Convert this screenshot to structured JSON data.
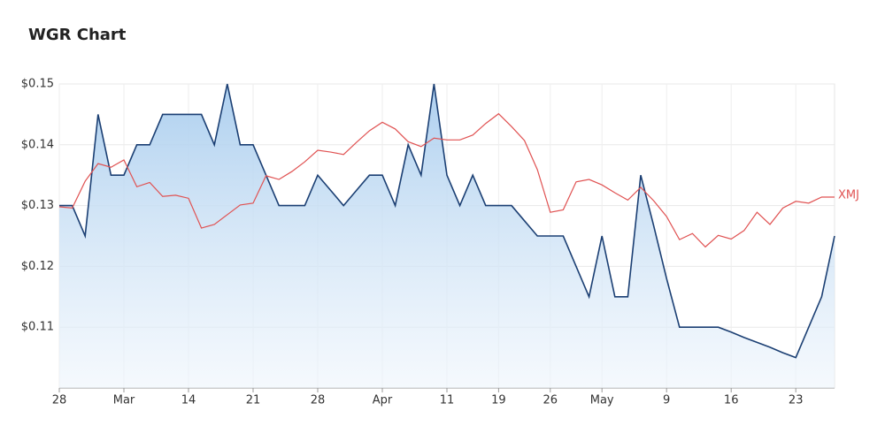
{
  "chart_data": {
    "type": "line",
    "title": "WGR Chart",
    "categories": [
      "28",
      null,
      null,
      null,
      null,
      "Mar",
      null,
      null,
      null,
      null,
      "14",
      null,
      null,
      null,
      null,
      "21",
      null,
      null,
      null,
      null,
      "28",
      null,
      null,
      null,
      null,
      "Apr",
      null,
      null,
      null,
      null,
      "11",
      null,
      null,
      null,
      "19",
      null,
      null,
      null,
      "26",
      null,
      null,
      null,
      "May",
      null,
      null,
      null,
      null,
      "9",
      null,
      null,
      null,
      null,
      "16",
      null,
      null,
      null,
      null,
      "23",
      null,
      null,
      null
    ],
    "series": [
      {
        "color": "#1b3f73",
        "fill": true,
        "values": [
          0.13,
          0.13,
          0.125,
          0.145,
          0.135,
          0.135,
          0.14,
          0.14,
          0.145,
          0.145,
          0.145,
          0.145,
          0.14,
          0.15,
          0.14,
          0.14,
          0.135,
          0.13,
          0.13,
          0.13,
          0.135,
          0.1325,
          0.13,
          0.1325,
          0.135,
          0.135,
          0.13,
          0.14,
          0.135,
          0.15,
          0.135,
          0.13,
          0.135,
          0.13,
          0.13,
          0.13,
          0.1275,
          0.125,
          0.125,
          0.125,
          0.12,
          0.115,
          0.125,
          0.115,
          0.115,
          0.135,
          0.1267,
          0.118,
          0.11,
          0.11,
          0.11,
          0.11,
          0.1092,
          0.1083,
          0.1075,
          0.1067,
          0.1058,
          0.105,
          0.11,
          0.115,
          0.125
        ]
      },
      {
        "name": "XMJ",
        "color": "#e05252",
        "fill": false,
        "values": [
          0.1298,
          0.1296,
          0.134,
          0.1369,
          0.1363,
          0.1375,
          0.1331,
          0.1338,
          0.1315,
          0.1317,
          0.1312,
          0.1263,
          0.1269,
          0.1285,
          0.1301,
          0.1304,
          0.1349,
          0.1343,
          0.1356,
          0.1372,
          0.1391,
          0.1388,
          0.1384,
          0.1404,
          0.1423,
          0.1437,
          0.1426,
          0.1405,
          0.1397,
          0.1411,
          0.1408,
          0.1408,
          0.1416,
          0.1435,
          0.1451,
          0.143,
          0.1407,
          0.1359,
          0.1289,
          0.1293,
          0.1339,
          0.1343,
          0.1334,
          0.1321,
          0.1309,
          0.133,
          0.1308,
          0.1282,
          0.1244,
          0.1254,
          0.1232,
          0.1251,
          0.1245,
          0.1259,
          0.1289,
          0.1269,
          0.1296,
          0.1307,
          0.1304,
          0.1314,
          0.1314
        ]
      }
    ],
    "ylim": [
      0.1,
      0.15
    ],
    "yticks": [
      {
        "value": 0.11,
        "label": "$0.11"
      },
      {
        "value": 0.12,
        "label": "$0.12"
      },
      {
        "value": 0.13,
        "label": "$0.13"
      },
      {
        "value": 0.14,
        "label": "$0.14"
      },
      {
        "value": 0.15,
        "label": "$0.15"
      }
    ],
    "grid": true
  }
}
